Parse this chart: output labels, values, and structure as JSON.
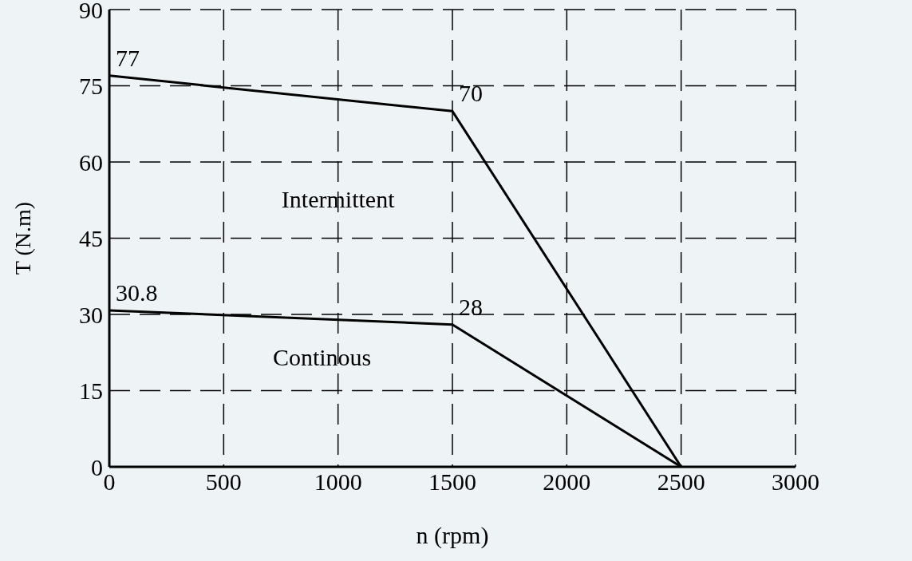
{
  "chart_data": {
    "type": "line",
    "xlabel": "n (rpm)",
    "ylabel": "T (N.m)",
    "series": [
      {
        "color": "#000000",
        "x": [
          0,
          1500,
          2500
        ],
        "values": [
          77,
          70,
          0
        ],
        "value_labels": [
          "77",
          "70",
          null
        ]
      },
      {
        "color": "#000000",
        "x": [
          0,
          1500,
          2500
        ],
        "values": [
          30.8,
          28,
          0
        ],
        "value_labels": [
          "30.8",
          "28",
          null
        ]
      }
    ],
    "annotations": [
      "Intermittent",
      "Continous"
    ],
    "xlim": [
      0,
      3000
    ],
    "xticks": [
      0,
      500,
      1000,
      1500,
      2000,
      2500,
      3000
    ],
    "ylim": [
      0,
      90
    ],
    "yticks": [
      0,
      15,
      30,
      45,
      60,
      75,
      90
    ],
    "grid": true,
    "legend": false,
    "marker": "none",
    "line_style": "solid"
  }
}
